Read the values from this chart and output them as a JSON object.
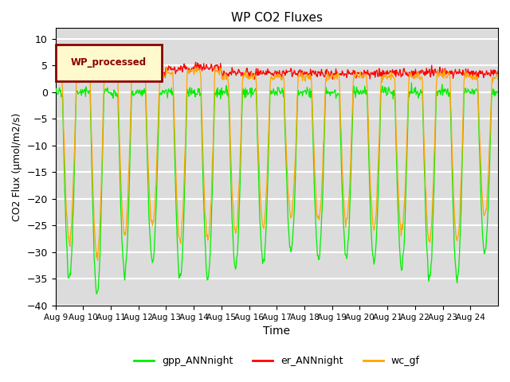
{
  "title": "WP CO2 Fluxes",
  "xlabel": "Time",
  "ylabel": "CO2 Flux (μmol/m2/s)",
  "ylim": [
    -40,
    12
  ],
  "yticks": [
    10,
    5,
    0,
    -5,
    -10,
    -15,
    -20,
    -25,
    -30,
    -35,
    -40
  ],
  "xtick_labels": [
    "Aug 9",
    "Aug 10",
    "Aug 11",
    "Aug 12",
    "Aug 13",
    "Aug 14",
    "Aug 15",
    "Aug 16",
    "Aug 17",
    "Aug 18",
    "Aug 19",
    "Aug 20",
    "Aug 21",
    "Aug 22",
    "Aug 23",
    "Aug 24"
  ],
  "n_days": 16,
  "points_per_day": 48,
  "gpp_color": "#00EE00",
  "er_color": "#FF0000",
  "wc_color": "#FFA500",
  "legend_text_color": "#8B0000",
  "legend_label": "WP_processed",
  "bg_color": "#DCDCDC",
  "grid_color": "white",
  "linewidth": 0.9
}
